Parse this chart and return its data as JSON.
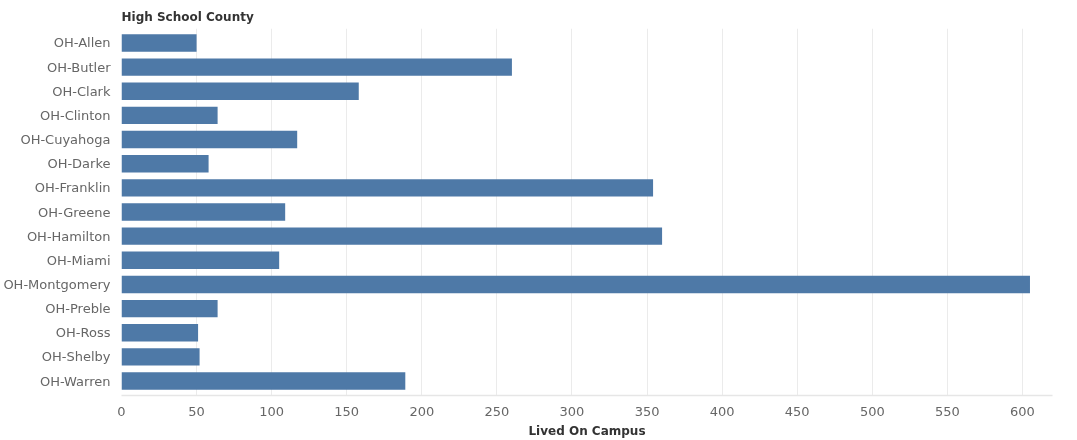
{
  "chart_data": {
    "type": "bar",
    "orientation": "horizontal",
    "ylabel": "High School County",
    "xlabel": "Lived On Campus",
    "categories": [
      "OH-Allen",
      "OH-Butler",
      "OH-Clark",
      "OH-Clinton",
      "OH-Cuyahoga",
      "OH-Darke",
      "OH-Franklin",
      "OH-Greene",
      "OH-Hamilton",
      "OH-Miami",
      "OH-Montgomery",
      "OH-Preble",
      "OH-Ross",
      "OH-Shelby",
      "OH-Warren"
    ],
    "values": [
      50,
      260,
      158,
      64,
      117,
      58,
      354,
      109,
      360,
      105,
      605,
      64,
      51,
      52,
      189
    ],
    "color": "#4e79a7",
    "xlim": [
      0,
      620
    ],
    "xticks": [
      0,
      50,
      100,
      150,
      200,
      250,
      300,
      350,
      400,
      450,
      500,
      550,
      600
    ],
    "grid": "x"
  }
}
